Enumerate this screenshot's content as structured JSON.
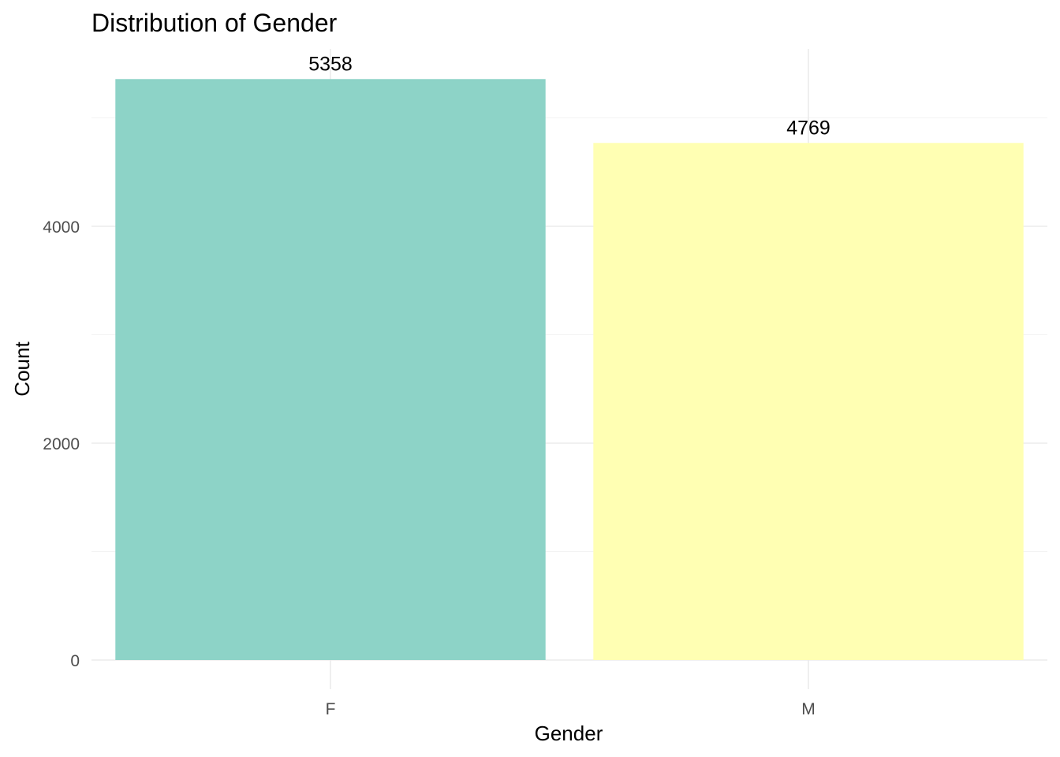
{
  "chart_data": {
    "type": "bar",
    "title": "Distribution of Gender",
    "xlabel": "Gender",
    "ylabel": "Count",
    "categories": [
      "F",
      "M"
    ],
    "values": [
      5358,
      4769
    ],
    "data_labels": [
      "5358",
      "4769"
    ],
    "colors": [
      "#8dd3c7",
      "#ffffb3"
    ],
    "ylim": [
      0,
      5650
    ],
    "yticks": [
      0,
      2000,
      4000
    ],
    "ytick_labels": [
      "0",
      "2000",
      "4000"
    ],
    "grid": true,
    "legend": "none"
  }
}
